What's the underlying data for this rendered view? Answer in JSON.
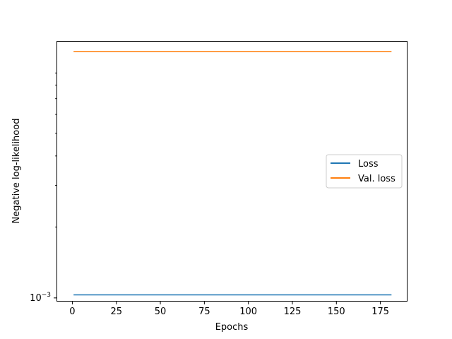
{
  "chart_data": {
    "type": "line",
    "title": "",
    "xlabel": "Epochs",
    "ylabel": "Negative log-likelihood",
    "yscale": "log",
    "xlim": [
      -9,
      190
    ],
    "ylim": [
      0.000965,
      0.0123
    ],
    "xticks": [
      0,
      25,
      50,
      75,
      100,
      125,
      150,
      175
    ],
    "xtick_labels": [
      "0",
      "25",
      "50",
      "75",
      "100",
      "125",
      "150",
      "175"
    ],
    "yticks": [
      0.001
    ],
    "ytick_base": "10",
    "ytick_exponent": "−3",
    "grid": false,
    "legend": {
      "placement": "center-right"
    },
    "x": [
      1,
      10,
      20,
      30,
      40,
      50,
      60,
      70,
      80,
      90,
      100,
      110,
      120,
      130,
      140,
      150,
      160,
      170,
      181
    ],
    "series": [
      {
        "name": "Loss",
        "color": "#1f77b4",
        "values": [
          0.00103,
          0.00103,
          0.00103,
          0.00103,
          0.00103,
          0.00103,
          0.00103,
          0.00103,
          0.00103,
          0.00103,
          0.00103,
          0.00103,
          0.00103,
          0.00103,
          0.00103,
          0.00103,
          0.00103,
          0.00103,
          0.00103
        ]
      },
      {
        "name": "Val. loss",
        "color": "#ff7f0e",
        "values": [
          0.0111,
          0.0111,
          0.0111,
          0.0111,
          0.0111,
          0.0111,
          0.0111,
          0.0111,
          0.0111,
          0.0111,
          0.0111,
          0.0111,
          0.0111,
          0.0111,
          0.0111,
          0.0111,
          0.0111,
          0.0111,
          0.0111
        ]
      }
    ]
  }
}
